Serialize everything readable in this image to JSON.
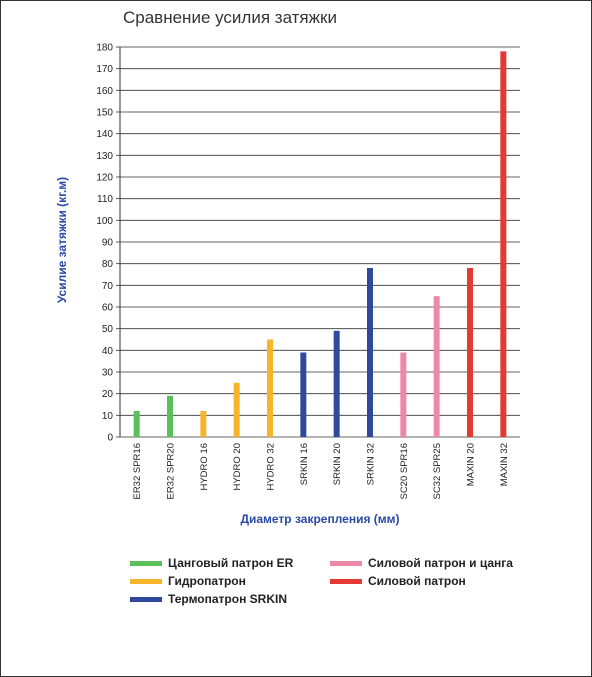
{
  "chart_data": {
    "type": "bar",
    "title": "Сравнение усилия затяжки",
    "xlabel": "Диаметр закрепления (мм)",
    "ylabel": "Усилие затяжки (кг.м)",
    "ylim": [
      0,
      180
    ],
    "yticks": [
      0,
      10,
      20,
      30,
      40,
      50,
      60,
      70,
      80,
      90,
      100,
      110,
      120,
      130,
      140,
      150,
      160,
      170,
      180
    ],
    "grid": true,
    "categories": [
      "ER32 SPR16",
      "ER32 SPR20",
      "HYDRO 16",
      "HYDRO 20",
      "HYDRO 32",
      "SRKIN 16",
      "SRKIN 20",
      "SRKIN 32",
      "SC20 SPR16",
      "SC32 SPR25",
      "MAXIN 20",
      "MAXIN 32"
    ],
    "values": [
      12,
      19,
      12,
      25,
      45,
      39,
      49,
      78,
      39,
      65,
      78,
      178
    ],
    "bar_groups": [
      0,
      0,
      1,
      1,
      1,
      2,
      2,
      2,
      3,
      3,
      4,
      4
    ],
    "legend": [
      {
        "label": "Цанговый патрон ER",
        "color": "#5cbf5c"
      },
      {
        "label": "Гидропатрон",
        "color": "#f7b52c"
      },
      {
        "label": "Термопатрон SRKIN",
        "color": "#2f4a9a"
      },
      {
        "label": "Силовой патрон и цанга",
        "color": "#ee88a8"
      },
      {
        "label": "Силовой патрон",
        "color": "#e53935"
      }
    ]
  }
}
